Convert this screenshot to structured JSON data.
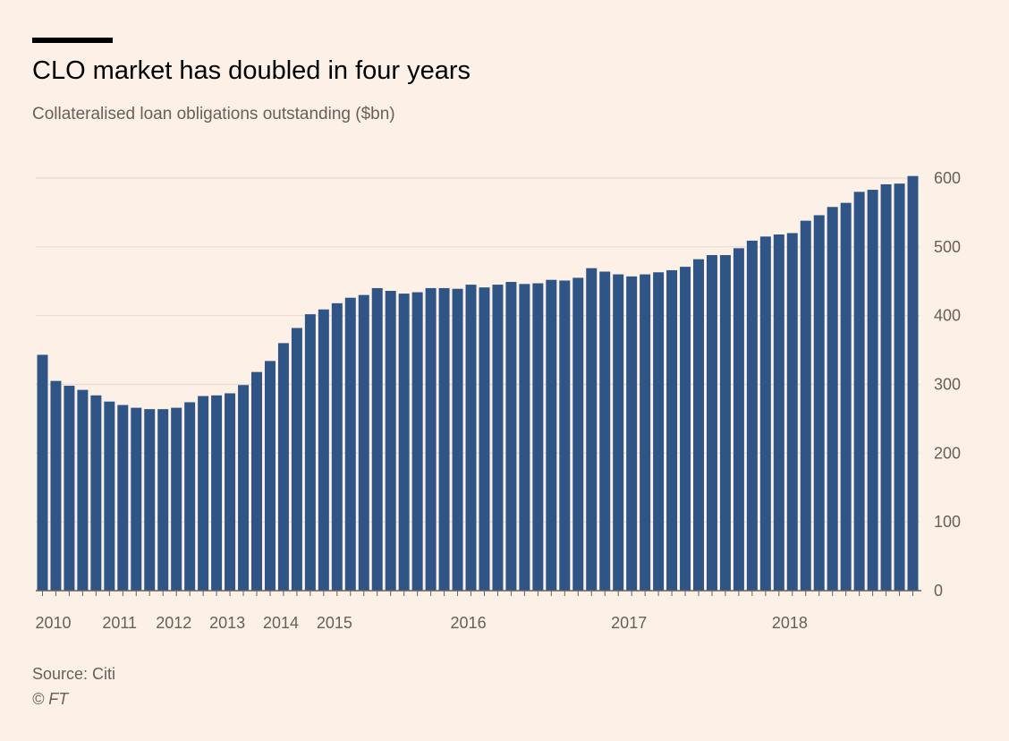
{
  "header": {
    "title": "CLO market has doubled in four years",
    "subtitle": "Collateralised loan obligations outstanding ($bn)"
  },
  "footer": {
    "source": "Source: Citi",
    "copyright": "© FT"
  },
  "colors": {
    "bar": "#2e5585",
    "background": "#fdf0e6",
    "grid": "#e7dbd2",
    "axis": "#66605c"
  },
  "chart_data": {
    "type": "bar",
    "title": "CLO market has doubled in four years",
    "subtitle": "Collateralised loan obligations outstanding ($bn)",
    "xlabel": "",
    "ylabel": "",
    "ylim": [
      0,
      600
    ],
    "y_ticks": [
      0,
      100,
      200,
      300,
      400,
      500,
      600
    ],
    "y_axis_side": "right",
    "grid": true,
    "x_tick_labels": [
      {
        "label": "2010",
        "bar_index": 0
      },
      {
        "label": "2011",
        "bar_index": 5
      },
      {
        "label": "2012",
        "bar_index": 9
      },
      {
        "label": "2013",
        "bar_index": 13
      },
      {
        "label": "2014",
        "bar_index": 17
      },
      {
        "label": "2015",
        "bar_index": 21
      },
      {
        "label": "2016",
        "bar_index": 31
      },
      {
        "label": "2017",
        "bar_index": 43
      },
      {
        "label": "2018",
        "bar_index": 55
      }
    ],
    "values": [
      343,
      305,
      298,
      292,
      284,
      275,
      270,
      266,
      264,
      264,
      266,
      274,
      283,
      284,
      287,
      299,
      318,
      334,
      360,
      382,
      402,
      409,
      418,
      426,
      430,
      440,
      436,
      432,
      434,
      440,
      440,
      439,
      445,
      441,
      445,
      449,
      446,
      447,
      452,
      451,
      455,
      469,
      464,
      460,
      457,
      460,
      463,
      466,
      471,
      482,
      488,
      488,
      498,
      509,
      515,
      518,
      520,
      538,
      546,
      558,
      564,
      580,
      583,
      591,
      592,
      603
    ]
  }
}
